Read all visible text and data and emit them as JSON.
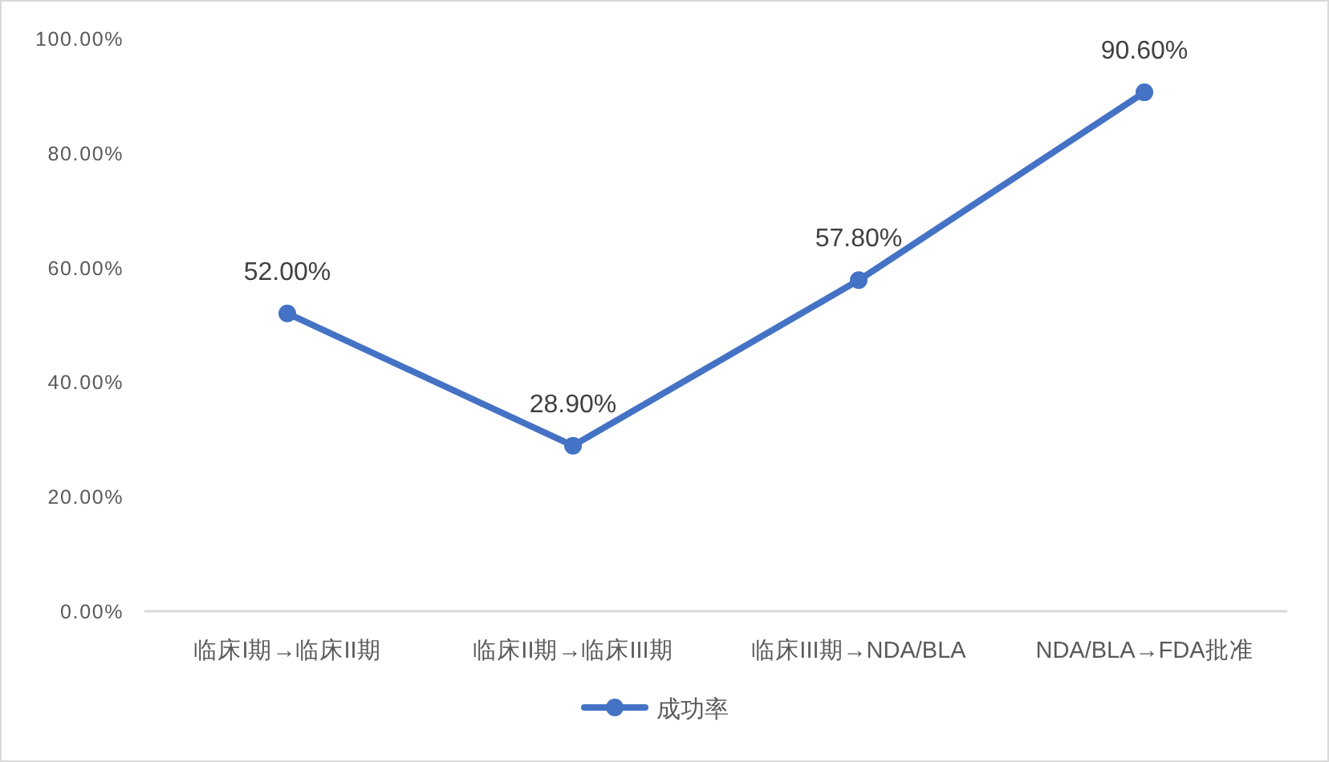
{
  "chart_data": {
    "type": "line",
    "categories": [
      "临床I期→临床II期",
      "临床II期→临床III期",
      "临床III期→NDA/BLA",
      "NDA/BLA→FDA批准"
    ],
    "series": [
      {
        "name": "成功率",
        "color": "#4472c4",
        "values": [
          52.0,
          28.9,
          57.8,
          90.6
        ],
        "value_labels": [
          "52.00%",
          "28.90%",
          "57.80%",
          "90.60%"
        ]
      }
    ],
    "ylim": [
      0,
      100
    ],
    "yticks": [
      {
        "value": 0,
        "label": "0.00%"
      },
      {
        "value": 20,
        "label": "20.00%"
      },
      {
        "value": 40,
        "label": "40.00%"
      },
      {
        "value": 60,
        "label": "60.00%"
      },
      {
        "value": 80,
        "label": "80.00%"
      },
      {
        "value": 100,
        "label": "100.00%"
      }
    ],
    "legend": "bottom",
    "marker": "circle"
  }
}
